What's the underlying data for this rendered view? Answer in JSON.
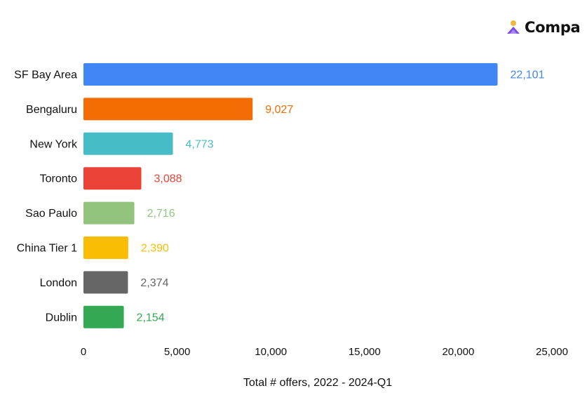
{
  "brand": {
    "name": "Compa"
  },
  "chart_data": {
    "type": "bar",
    "orientation": "horizontal",
    "categories": [
      "SF Bay Area",
      "Bengaluru",
      "New York",
      "Toronto",
      "Sao Paulo",
      "China Tier 1",
      "London",
      "Dublin"
    ],
    "values": [
      22101,
      9027,
      4773,
      3088,
      2716,
      2390,
      2374,
      2154
    ],
    "value_labels": [
      "22,101",
      "9,027",
      "4,773",
      "3,088",
      "2,716",
      "2,390",
      "2,374",
      "2,154"
    ],
    "colors": [
      "#4285F4",
      "#F46D04",
      "#46BDC6",
      "#EA4335",
      "#93C47D",
      "#FBBC04",
      "#666666",
      "#34A853"
    ],
    "xticks": [
      0,
      5000,
      10000,
      15000,
      20000,
      25000
    ],
    "xtick_labels": [
      "0",
      "5,000",
      "10,000",
      "15,000",
      "20,000",
      "25,000"
    ],
    "xlim": [
      0,
      25000
    ],
    "xlabel": "Total # offers, 2022 - 2024-Q1",
    "ylabel": "",
    "title": "",
    "grid": false,
    "legend": false
  }
}
